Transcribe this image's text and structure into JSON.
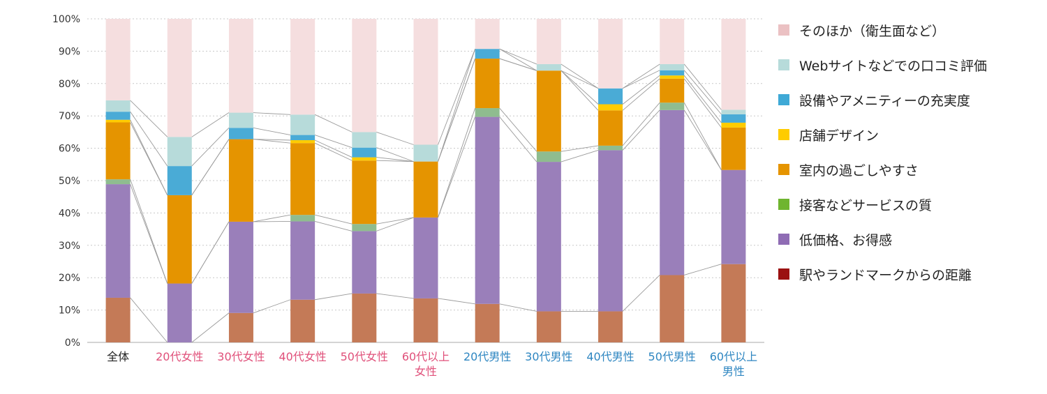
{
  "chart_data": {
    "type": "bar",
    "stacked": true,
    "percent": true,
    "connector_lines": true,
    "grid": "horizontal-dotted",
    "legend_position": "right",
    "ylim": [
      0,
      100
    ],
    "yticks": [
      "0%",
      "10%",
      "20%",
      "30%",
      "40%",
      "50%",
      "60%",
      "70%",
      "80%",
      "90%",
      "100%"
    ],
    "categories": [
      {
        "lines": [
          "全体"
        ],
        "color": "#222222"
      },
      {
        "lines": [
          "20代女性"
        ],
        "color": "#e0507a"
      },
      {
        "lines": [
          "30代女性"
        ],
        "color": "#e0507a"
      },
      {
        "lines": [
          "40代女性"
        ],
        "color": "#e0507a"
      },
      {
        "lines": [
          "50代女性"
        ],
        "color": "#e0507a"
      },
      {
        "lines": [
          "60代以上",
          "女性"
        ],
        "color": "#e0507a"
      },
      {
        "lines": [
          "20代男性"
        ],
        "color": "#2e86c1"
      },
      {
        "lines": [
          "30代男性"
        ],
        "color": "#2e86c1"
      },
      {
        "lines": [
          "40代男性"
        ],
        "color": "#2e86c1"
      },
      {
        "lines": [
          "50代男性"
        ],
        "color": "#2e86c1"
      },
      {
        "lines": [
          "60代以上",
          "男性"
        ],
        "color": "#2e86c1"
      }
    ],
    "series": [
      {
        "name": "駅やランドマークからの距離",
        "color": "#c47a57",
        "legend_color": "#9b1111",
        "values": [
          13.8,
          0,
          9.1,
          13.2,
          15.1,
          13.6,
          11.9,
          9.6,
          9.6,
          20.8,
          24.2
        ]
      },
      {
        "name": "低価格、お得感",
        "color": "#9a7fba",
        "legend_color": "#8f6cb4",
        "values": [
          35.1,
          18.2,
          28.2,
          24.2,
          19.3,
          25.0,
          57.8,
          46.2,
          49.8,
          51.0,
          29.1
        ]
      },
      {
        "name": "接客などサービスの質",
        "color": "#8fbc8f",
        "legend_color": "#6fb52f",
        "values": [
          1.5,
          0,
          0,
          2.0,
          2.2,
          0,
          2.7,
          3.2,
          1.4,
          2.3,
          0
        ]
      },
      {
        "name": "室内の過ごしやすさ",
        "color": "#e59400",
        "legend_color": "#e59400",
        "values": [
          17.6,
          27.3,
          25.5,
          22.2,
          19.6,
          17.3,
          15.3,
          25.0,
          10.9,
          7.4,
          13.1
        ]
      },
      {
        "name": "店舗デザイン",
        "color": "#ffcc00",
        "legend_color": "#ffcc00",
        "values": [
          0.8,
          0,
          0,
          0.9,
          1.0,
          0,
          0,
          0,
          1.9,
          1.0,
          1.5
        ]
      },
      {
        "name": "設備やアメニティーの充実度",
        "color": "#4aabd6",
        "legend_color": "#3fa9d6",
        "values": [
          2.5,
          9.0,
          3.5,
          1.6,
          3.0,
          0,
          3.0,
          0,
          4.9,
          1.6,
          2.6
        ]
      },
      {
        "name": "Webサイトなどでの口コミ評価",
        "color": "#b7dbda",
        "legend_color": "#b7dbda",
        "values": [
          3.5,
          9.0,
          4.7,
          6.3,
          4.8,
          5.2,
          0,
          2.0,
          0,
          1.9,
          1.4
        ]
      },
      {
        "name": "そのほか（衛生面など）",
        "color": "#f5dedf",
        "legend_color": "#ebc1c3",
        "values": [
          25.2,
          36.5,
          29.0,
          29.6,
          35.0,
          38.9,
          9.3,
          14.0,
          21.5,
          14.0,
          28.1
        ]
      }
    ]
  }
}
